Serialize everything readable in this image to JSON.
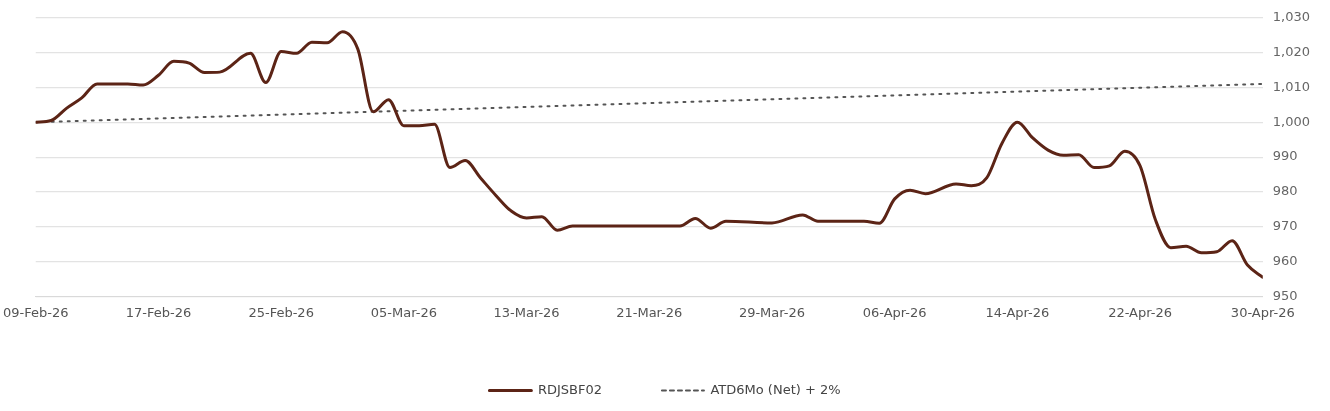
{
  "chart_data": {
    "type": "line",
    "x": [
      "--02-09",
      "--02-10",
      "--02-11",
      "--02-12",
      "--02-13",
      "--02-15",
      "--02-16",
      "--02-17",
      "--02-18",
      "--02-19",
      "--02-20",
      "--02-21",
      "--02-23",
      "--02-24",
      "--02-25",
      "--02-26",
      "--02-27",
      "--02-28",
      "--03-01",
      "--03-02",
      "--03-03",
      "--03-04",
      "--03-05",
      "--03-06",
      "--03-07",
      "--03-08",
      "--03-09",
      "--03-10",
      "--03-11",
      "--03-12",
      "--03-13",
      "--03-14",
      "--03-15",
      "--03-16",
      "--03-23",
      "--03-24",
      "--03-25",
      "--03-26",
      "--03-29",
      "--03-31",
      "--04-01",
      "--04-04",
      "--04-05",
      "--04-06",
      "--04-07",
      "--04-08",
      "--04-10",
      "--04-11",
      "--04-12",
      "--04-13",
      "--04-14",
      "--04-15",
      "--04-16",
      "--04-17",
      "--04-18",
      "--04-19",
      "--04-20",
      "--04-21",
      "--04-22",
      "--04-23",
      "--04-24",
      "--04-25",
      "--04-26",
      "--04-27",
      "--04-28",
      "--04-29",
      "--04-30"
    ],
    "series": [
      {
        "name": "RDJSBF02",
        "color": "#5c2416",
        "line_style": "solid",
        "values": [
          1000,
          1000.5,
          1004,
          1007,
          1011,
          1011,
          1010.7,
          1013.5,
          1017.5,
          1017,
          1014.3,
          1014.4,
          1019.8,
          1011.4,
          1020.3,
          1019.8,
          1023,
          1022.8,
          1026,
          1021,
          1003,
          1006.5,
          999,
          999,
          999.4,
          987,
          989,
          984,
          979,
          974.5,
          972.5,
          972.9,
          969,
          970.2,
          970.2,
          972.4,
          969.6,
          971.6,
          971.1,
          973.4,
          971.6,
          971.6,
          971,
          978,
          980.5,
          979.5,
          982.3,
          981.8,
          984,
          994,
          1000,
          995.5,
          992,
          990.5,
          990.7,
          987,
          987.5,
          991.7,
          987.5,
          972,
          964,
          964.4,
          962.5,
          962.8,
          966,
          959,
          955.5
        ]
      },
      {
        "name": "ATD6Mo (Net) + 2%",
        "color": "#555555",
        "line_style": "dotted",
        "x": [
          "--02-09",
          "--04-30"
        ],
        "values": [
          1000,
          1011
        ]
      }
    ],
    "xlim": [
      "--02-09",
      "--04-30"
    ],
    "xticks": [
      {
        "value": "--02-09",
        "label": "09-Feb-26"
      },
      {
        "value": "--02-17",
        "label": "17-Feb-26"
      },
      {
        "value": "--02-25",
        "label": "25-Feb-26"
      },
      {
        "value": "--03-05",
        "label": "05-Mar-26"
      },
      {
        "value": "--03-13",
        "label": "13-Mar-26"
      },
      {
        "value": "--03-21",
        "label": "21-Mar-26"
      },
      {
        "value": "--03-29",
        "label": "29-Mar-26"
      },
      {
        "value": "--04-06",
        "label": "06-Apr-26"
      },
      {
        "value": "--04-14",
        "label": "14-Apr-26"
      },
      {
        "value": "--04-22",
        "label": "22-Apr-26"
      },
      {
        "value": "--04-30",
        "label": "30-Apr-26"
      }
    ],
    "ylim": [
      950,
      1030
    ],
    "yticks": [
      950,
      960,
      970,
      980,
      990,
      {
        "value": 1000,
        "label": "1,000"
      },
      {
        "value": 1010,
        "label": "1,010"
      },
      {
        "value": 1020,
        "label": "1,020"
      },
      {
        "value": 1030,
        "label": "1,030"
      }
    ],
    "grid": "y",
    "legend": "bottom",
    "marker": "none"
  }
}
